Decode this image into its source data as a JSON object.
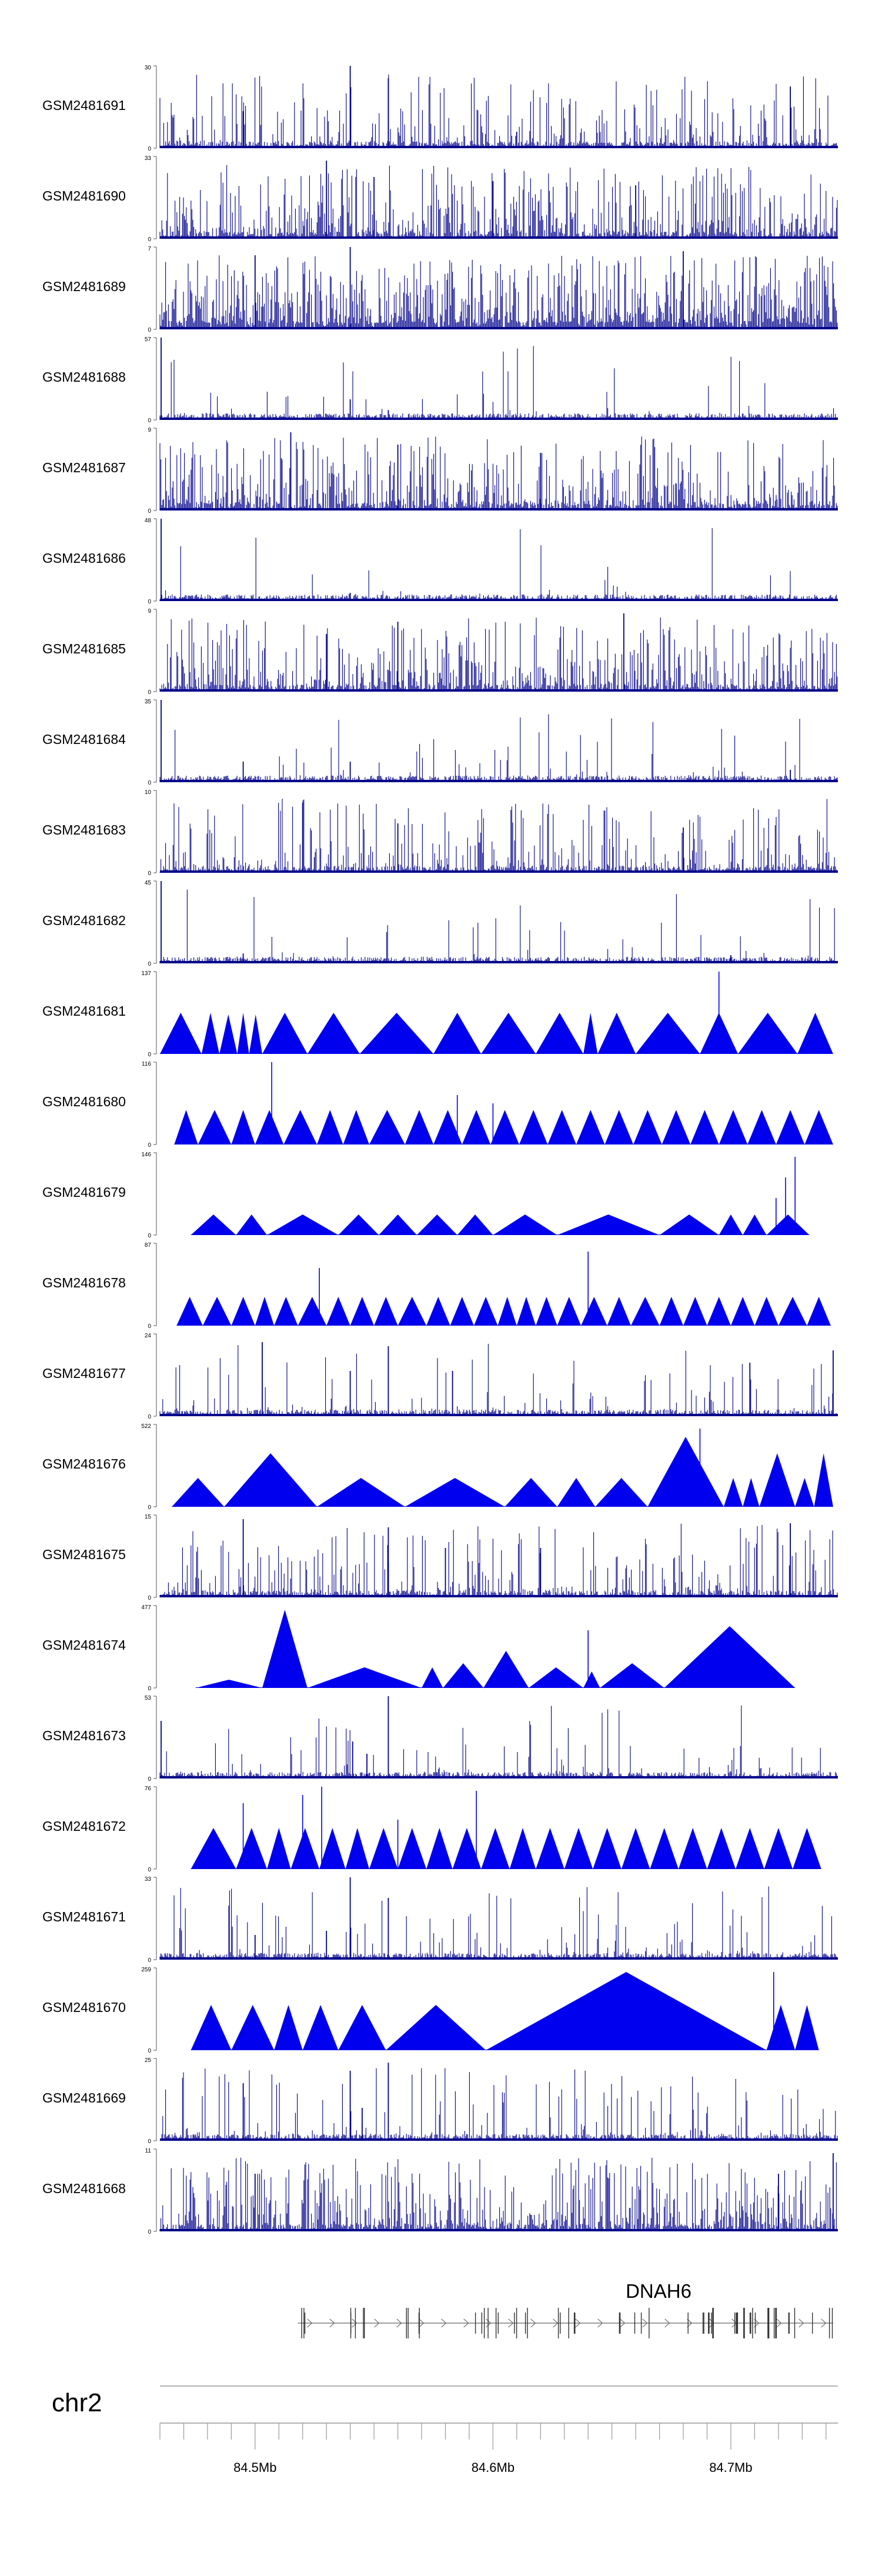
{
  "chart_data": {
    "type": "area",
    "title": "",
    "chromosome": "chr2",
    "gene": "DNAH6",
    "x_axis": {
      "unit": "Mb",
      "range": [
        84.46,
        84.745
      ],
      "tick_labels": [
        "84.5Mb",
        "84.6Mb",
        "84.7Mb"
      ],
      "tick_values": [
        84.5,
        84.6,
        84.7
      ]
    },
    "tracks": [
      {
        "name": "GSM2481691",
        "ymax": 30,
        "style": "dense",
        "density": 0.35,
        "peaks": [
          [
            84.495,
            0.45
          ],
          [
            84.54,
            1.0
          ],
          [
            84.556,
            0.85
          ],
          [
            84.725,
            0.75
          ],
          [
            84.61,
            0.2
          ]
        ]
      },
      {
        "name": "GSM2481690",
        "ymax": 33,
        "style": "dense",
        "density": 0.55,
        "peaks": [
          [
            84.53,
            0.95
          ],
          [
            84.6,
            0.7
          ],
          [
            84.66,
            0.65
          ],
          [
            84.55,
            0.75
          ]
        ]
      },
      {
        "name": "GSM2481689",
        "ymax": 7,
        "style": "dense",
        "density": 0.85,
        "peaks": [
          [
            84.54,
            1.0
          ],
          [
            84.68,
            0.95
          ],
          [
            84.5,
            0.9
          ]
        ]
      },
      {
        "name": "GSM2481688",
        "ymax": 57,
        "style": "dense",
        "density": 0.05,
        "peaks": [
          [
            84.4605,
            1.0
          ],
          [
            84.54,
            0.25
          ],
          [
            84.556,
            0.12
          ]
        ]
      },
      {
        "name": "GSM2481687",
        "ymax": 9,
        "style": "dense",
        "density": 0.6,
        "peaks": [
          [
            84.515,
            0.95
          ],
          [
            84.56,
            0.8
          ],
          [
            84.62,
            0.7
          ]
        ]
      },
      {
        "name": "GSM2481686",
        "ymax": 48,
        "style": "dense",
        "density": 0.05,
        "peaks": [
          [
            84.4605,
            1.0
          ],
          [
            84.54,
            0.1
          ]
        ]
      },
      {
        "name": "GSM2481685",
        "ymax": 9,
        "style": "dense",
        "density": 0.55,
        "peaks": [
          [
            84.56,
            0.85
          ],
          [
            84.655,
            0.95
          ],
          [
            84.53,
            0.7
          ]
        ]
      },
      {
        "name": "GSM2481684",
        "ymax": 35,
        "style": "dense",
        "density": 0.06,
        "peaks": [
          [
            84.4605,
            1.0
          ],
          [
            84.495,
            0.25
          ],
          [
            84.54,
            0.25
          ],
          [
            84.725,
            0.15
          ]
        ]
      },
      {
        "name": "GSM2481683",
        "ymax": 10,
        "style": "dense",
        "density": 0.35,
        "peaks": [
          [
            84.52,
            0.85
          ],
          [
            84.56,
            0.6
          ],
          [
            84.68,
            0.55
          ]
        ]
      },
      {
        "name": "GSM2481682",
        "ymax": 45,
        "style": "dense",
        "density": 0.05,
        "peaks": [
          [
            84.4605,
            1.0
          ],
          [
            84.495,
            0.12
          ],
          [
            84.7,
            0.1
          ]
        ]
      },
      {
        "name": "GSM2481681",
        "ymax": 137,
        "style": "triangles",
        "coverage": [
          [
            84.46,
            0.45
          ],
          [
            84.4775,
            0.5
          ],
          [
            84.485,
            0.5
          ],
          [
            84.4925,
            0.48
          ],
          [
            84.4975,
            0.5
          ],
          [
            84.503,
            0.48
          ],
          [
            84.522,
            0.5
          ],
          [
            84.544,
            0.5
          ],
          [
            84.575,
            0.5
          ],
          [
            84.595,
            0.5
          ],
          [
            84.618,
            0.5
          ],
          [
            84.638,
            0.5
          ],
          [
            84.644,
            0.5
          ],
          [
            84.66,
            0.5
          ],
          [
            84.687,
            0.5
          ],
          [
            84.703,
            0.5
          ],
          [
            84.728,
            0.5
          ],
          [
            84.743,
            0.5
          ]
        ],
        "spikes": [
          [
            84.695,
            1.0
          ]
        ]
      },
      {
        "name": "GSM2481680",
        "ymax": 116,
        "style": "triangles",
        "coverage": [
          [
            84.466,
            0.4
          ],
          [
            84.476,
            0.42
          ],
          [
            84.49,
            0.42
          ],
          [
            84.5,
            0.42
          ],
          [
            84.512,
            0.42
          ],
          [
            84.526,
            0.42
          ],
          [
            84.537,
            0.42
          ],
          [
            84.548,
            0.42
          ],
          [
            84.563,
            0.42
          ],
          [
            84.575,
            0.42
          ],
          [
            84.587,
            0.42
          ],
          [
            84.599,
            0.42
          ],
          [
            84.611,
            0.42
          ],
          [
            84.623,
            0.42
          ],
          [
            84.635,
            0.42
          ],
          [
            84.647,
            0.42
          ],
          [
            84.659,
            0.42
          ],
          [
            84.671,
            0.42
          ],
          [
            84.683,
            0.42
          ],
          [
            84.695,
            0.42
          ],
          [
            84.707,
            0.42
          ],
          [
            84.719,
            0.42
          ],
          [
            84.731,
            0.42
          ],
          [
            84.743,
            0.42
          ]
        ],
        "spikes": [
          [
            84.507,
            1.0
          ],
          [
            84.585,
            0.6
          ],
          [
            84.6,
            0.5
          ]
        ]
      },
      {
        "name": "GSM2481679",
        "ymax": 146,
        "style": "triangles",
        "coverage": [
          [
            84.473,
            0.25
          ],
          [
            84.492,
            0.25
          ],
          [
            84.505,
            0.25
          ],
          [
            84.535,
            0.25
          ],
          [
            84.552,
            0.25
          ],
          [
            84.568,
            0.25
          ],
          [
            84.585,
            0.25
          ],
          [
            84.6,
            0.25
          ],
          [
            84.627,
            0.25
          ],
          [
            84.67,
            0.25
          ],
          [
            84.695,
            0.25
          ],
          [
            84.705,
            0.25
          ],
          [
            84.715,
            0.25
          ],
          [
            84.733,
            0.25
          ]
        ],
        "spikes": [
          [
            84.727,
            0.95
          ],
          [
            84.723,
            0.7
          ],
          [
            84.719,
            0.45
          ]
        ]
      },
      {
        "name": "GSM2481678",
        "ymax": 87,
        "style": "triangles",
        "coverage": [
          [
            84.467,
            0.35
          ],
          [
            84.478,
            0.35
          ],
          [
            84.49,
            0.35
          ],
          [
            84.5,
            0.35
          ],
          [
            84.508,
            0.35
          ],
          [
            84.518,
            0.35
          ],
          [
            84.53,
            0.35
          ],
          [
            84.54,
            0.35
          ],
          [
            84.55,
            0.35
          ],
          [
            84.56,
            0.35
          ],
          [
            84.572,
            0.35
          ],
          [
            84.582,
            0.35
          ],
          [
            84.592,
            0.35
          ],
          [
            84.602,
            0.35
          ],
          [
            84.61,
            0.35
          ],
          [
            84.618,
            0.35
          ],
          [
            84.627,
            0.35
          ],
          [
            84.637,
            0.35
          ],
          [
            84.648,
            0.35
          ],
          [
            84.658,
            0.35
          ],
          [
            84.67,
            0.35
          ],
          [
            84.68,
            0.35
          ],
          [
            84.69,
            0.35
          ],
          [
            84.7,
            0.35
          ],
          [
            84.71,
            0.35
          ],
          [
            84.72,
            0.35
          ],
          [
            84.732,
            0.35
          ],
          [
            84.742,
            0.35
          ]
        ],
        "spikes": [
          [
            84.527,
            0.7
          ],
          [
            84.64,
            0.9
          ]
        ]
      },
      {
        "name": "GSM2481677",
        "ymax": 24,
        "style": "dense",
        "density": 0.12,
        "peaks": [
          [
            84.503,
            0.9
          ],
          [
            84.556,
            0.85
          ],
          [
            84.583,
            0.55
          ],
          [
            84.54,
            0.55
          ],
          [
            84.708,
            0.65
          ],
          [
            84.743,
            0.8
          ]
        ]
      },
      {
        "name": "GSM2481676",
        "ymax": 522,
        "style": "triangles",
        "coverage": [
          [
            84.465,
            0.35
          ],
          [
            84.487,
            0.35
          ],
          [
            84.526,
            0.65
          ],
          [
            84.563,
            0.35
          ],
          [
            84.605,
            0.35
          ],
          [
            84.627,
            0.35
          ],
          [
            84.643,
            0.35
          ],
          [
            84.665,
            0.35
          ],
          [
            84.697,
            0.85
          ],
          [
            84.705,
            0.35
          ],
          [
            84.712,
            0.35
          ],
          [
            84.727,
            0.65
          ],
          [
            84.735,
            0.35
          ],
          [
            84.743,
            0.65
          ]
        ],
        "spikes": [
          [
            84.687,
            0.95
          ]
        ]
      },
      {
        "name": "GSM2481675",
        "ymax": 15,
        "style": "dense",
        "density": 0.3,
        "peaks": [
          [
            84.495,
            0.95
          ],
          [
            84.556,
            0.85
          ],
          [
            84.725,
            0.9
          ],
          [
            84.58,
            0.6
          ],
          [
            84.62,
            0.6
          ]
        ]
      },
      {
        "name": "GSM2481674",
        "ymax": 477,
        "style": "triangles",
        "coverage": [
          [
            84.475,
            0.25
          ],
          [
            84.503,
            0.1
          ],
          [
            84.522,
            0.95
          ],
          [
            84.57,
            0.25
          ],
          [
            84.579,
            0.25
          ],
          [
            84.596,
            0.3
          ],
          [
            84.615,
            0.45
          ],
          [
            84.638,
            0.25
          ],
          [
            84.645,
            0.2
          ],
          [
            84.672,
            0.3
          ],
          [
            84.727,
            0.75
          ]
        ],
        "spikes": [
          [
            84.64,
            0.7
          ]
        ]
      },
      {
        "name": "GSM2481673",
        "ymax": 53,
        "style": "dense",
        "density": 0.1,
        "peaks": [
          [
            84.4605,
            0.7
          ],
          [
            84.556,
            1.0
          ],
          [
            84.541,
            0.45
          ],
          [
            84.547,
            0.3
          ]
        ]
      },
      {
        "name": "GSM2481672",
        "ymax": 76,
        "style": "triangles",
        "coverage": [
          [
            84.473,
            0.5
          ],
          [
            84.492,
            0.5
          ],
          [
            84.505,
            0.5
          ],
          [
            84.515,
            0.5
          ],
          [
            84.527,
            0.5
          ],
          [
            84.538,
            0.5
          ],
          [
            84.548,
            0.5
          ],
          [
            84.56,
            0.5
          ],
          [
            84.572,
            0.5
          ],
          [
            84.583,
            0.5
          ],
          [
            84.595,
            0.5
          ],
          [
            84.607,
            0.5
          ],
          [
            84.618,
            0.5
          ],
          [
            84.63,
            0.5
          ],
          [
            84.642,
            0.5
          ],
          [
            84.654,
            0.5
          ],
          [
            84.666,
            0.5
          ],
          [
            84.678,
            0.5
          ],
          [
            84.69,
            0.5
          ],
          [
            84.702,
            0.5
          ],
          [
            84.714,
            0.5
          ],
          [
            84.726,
            0.5
          ],
          [
            84.738,
            0.5
          ]
        ],
        "spikes": [
          [
            84.495,
            0.8
          ],
          [
            84.52,
            0.9
          ],
          [
            84.528,
            1.0
          ],
          [
            84.593,
            0.95
          ],
          [
            84.56,
            0.6
          ]
        ]
      },
      {
        "name": "GSM2481671",
        "ymax": 33,
        "style": "dense",
        "density": 0.15,
        "peaks": [
          [
            84.54,
            1.0
          ],
          [
            84.556,
            0.75
          ],
          [
            84.53,
            0.35
          ],
          [
            84.5,
            0.3
          ]
        ]
      },
      {
        "name": "GSM2481670",
        "ymax": 259,
        "style": "triangles",
        "coverage": [
          [
            84.473,
            0.55
          ],
          [
            84.49,
            0.55
          ],
          [
            84.508,
            0.55
          ],
          [
            84.52,
            0.55
          ],
          [
            84.535,
            0.55
          ],
          [
            84.555,
            0.55
          ],
          [
            84.597,
            0.55
          ],
          [
            84.715,
            0.95
          ],
          [
            84.727,
            0.55
          ],
          [
            84.737,
            0.55
          ]
        ],
        "spikes": [
          [
            84.718,
            0.95
          ]
        ]
      },
      {
        "name": "GSM2481669",
        "ymax": 25,
        "style": "dense",
        "density": 0.15,
        "peaks": [
          [
            84.495,
            0.7
          ],
          [
            84.54,
            0.85
          ],
          [
            84.556,
            0.95
          ],
          [
            84.545,
            0.4
          ]
        ]
      },
      {
        "name": "GSM2481668",
        "ymax": 11,
        "style": "dense",
        "density": 0.55,
        "peaks": [
          [
            84.743,
            0.95
          ],
          [
            84.72,
            0.7
          ],
          [
            84.5,
            0.7
          ]
        ]
      }
    ],
    "gene_model": {
      "name": "DNAH6",
      "strand": "+",
      "start": 84.518,
      "end": 84.743
    }
  }
}
